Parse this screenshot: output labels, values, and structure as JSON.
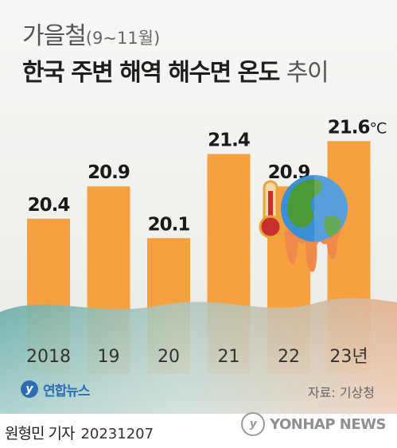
{
  "header": {
    "season": "가을철",
    "period": "(9~11월)",
    "title_bold": "한국 주변 해역 해수면 온도",
    "title_light": "추이"
  },
  "chart_data": {
    "type": "bar",
    "categories": [
      "2018",
      "19",
      "20",
      "21",
      "22",
      "23년"
    ],
    "values": [
      20.4,
      20.9,
      20.1,
      21.4,
      20.9,
      21.6
    ],
    "value_labels": [
      "20.4",
      "20.9",
      "20.1",
      "21.4",
      "20.9",
      "21.6"
    ],
    "unit": "°C",
    "ylim": [
      18.0,
      22.0
    ],
    "bar_color": "#f5a13f"
  },
  "branding": {
    "logo_text": "연합뉴스",
    "source": "자료: 기상청",
    "reporter": "원형민 기자",
    "date": "20231207",
    "watermark": "YONHAP NEWS"
  },
  "colors": {
    "sea_dark": "#5fa8a2",
    "sea_light": "#d3cfc7",
    "warm_bar": "#f5a13f"
  },
  "icons": [
    "globe-melting-icon",
    "thermometer-icon"
  ]
}
